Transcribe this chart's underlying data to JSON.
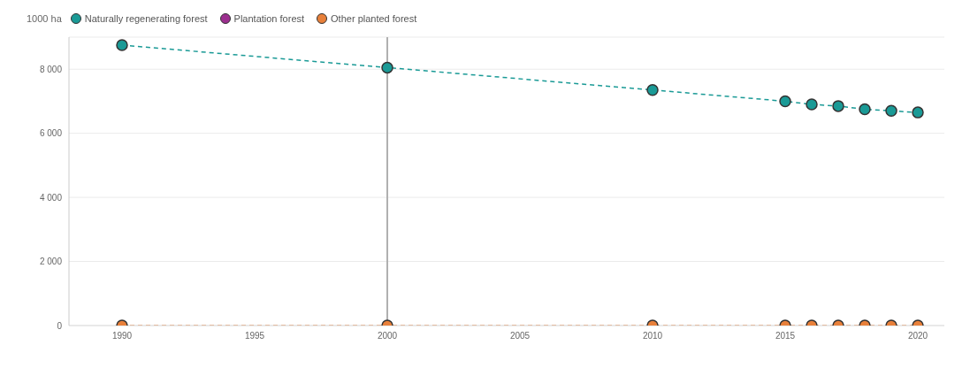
{
  "chart_data": {
    "type": "line",
    "ylabel": "1000 ha",
    "x": [
      1990,
      2000,
      2010,
      2015,
      2016,
      2017,
      2018,
      2019,
      2020
    ],
    "series": [
      {
        "name": "Naturally regenerating forest",
        "color": "#1a9a96",
        "values": [
          8750,
          8050,
          7350,
          7000,
          6900,
          6850,
          6750,
          6700,
          6650
        ]
      },
      {
        "name": "Plantation forest",
        "color": "#9c2f8f",
        "values": [
          null,
          null,
          null,
          null,
          null,
          null,
          null,
          null,
          null
        ]
      },
      {
        "name": "Other planted forest",
        "color": "#e8803a",
        "values": [
          0,
          0,
          0,
          0,
          0,
          0,
          0,
          0,
          0
        ]
      }
    ],
    "xlim": [
      1988,
      2021
    ],
    "xticks": [
      1990,
      1995,
      2000,
      2005,
      2010,
      2015,
      2020
    ],
    "ylim": [
      0,
      9000
    ],
    "yticks": [
      {
        "value": 0,
        "label": "0"
      },
      {
        "value": 2000,
        "label": "2 000"
      },
      {
        "value": 4000,
        "label": "4 000"
      },
      {
        "value": 6000,
        "label": "6 000"
      },
      {
        "value": 8000,
        "label": "8 000"
      }
    ],
    "ref_lines": [
      {
        "axis": "x",
        "value": 2000,
        "color": "#b0b0b0"
      }
    ],
    "grid": "y",
    "legend": "top left",
    "marker": "circle",
    "line_style": "dashed"
  }
}
